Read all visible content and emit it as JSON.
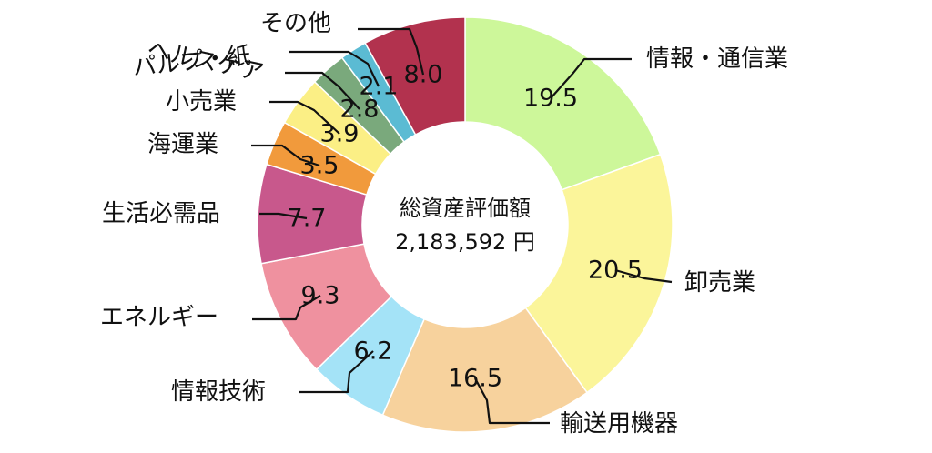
{
  "chart_data": {
    "type": "pie",
    "style": "donut",
    "center_title": "総資産評価額",
    "center_value": "2,183,592 円",
    "slices": [
      {
        "label": "情報・通信業",
        "value": 19.5,
        "color": "#cdf79a"
      },
      {
        "label": "卸売業",
        "value": 20.5,
        "color": "#fbf59a"
      },
      {
        "label": "輸送用機器",
        "value": 16.5,
        "color": "#f7d29d"
      },
      {
        "label": "情報技術",
        "value": 6.2,
        "color": "#a4e3f7"
      },
      {
        "label": "エネルギー",
        "value": 9.3,
        "color": "#ef919f"
      },
      {
        "label": "生活必需品",
        "value": 7.7,
        "color": "#c8588c"
      },
      {
        "label": "海運業",
        "value": 3.5,
        "color": "#f19a3c"
      },
      {
        "label": "小売業",
        "value": 3.9,
        "color": "#fbef85"
      },
      {
        "label": "パルプ・紙",
        "value": 2.8,
        "color": "#7aa97c"
      },
      {
        "label": "ヘルスケア",
        "value": 2.1,
        "color": "#5bbbd3"
      },
      {
        "label": "その他",
        "value": 8.0,
        "color": "#b2324e"
      }
    ]
  }
}
